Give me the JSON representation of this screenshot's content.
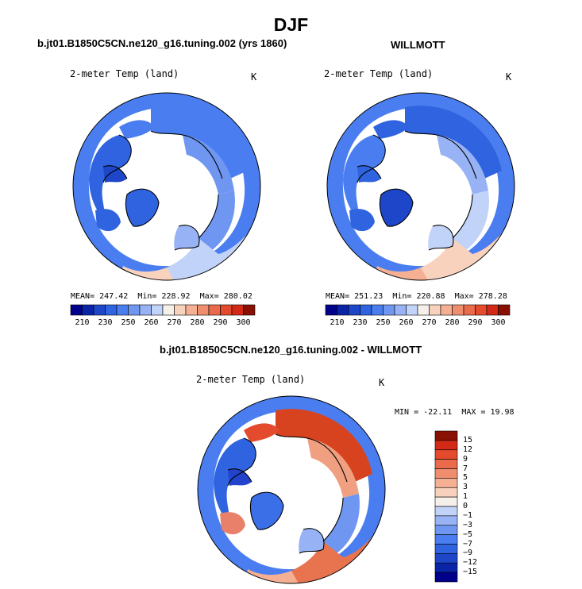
{
  "title": "DJF",
  "colors": {
    "abs_scale": [
      "#00008b",
      "#0a24a8",
      "#1e46c8",
      "#2f63e0",
      "#4a7ef0",
      "#6f97f2",
      "#98b3f5",
      "#c1d3f8",
      "#f6f0ea",
      "#f8d2bd",
      "#f5b094",
      "#ef8e6e",
      "#ea6a4b",
      "#e44a2c",
      "#d22a16",
      "#8b1004"
    ],
    "diff_scale": [
      "#00008b",
      "#0a24a8",
      "#1e46c8",
      "#2f63e0",
      "#4a7ef0",
      "#6f97f2",
      "#98b3f5",
      "#c1d3f8",
      "#f6f0ea",
      "#f8d2bd",
      "#f5b094",
      "#ef8e6e",
      "#ea6a4b",
      "#e44a2c",
      "#d22a16",
      "#8b1004"
    ]
  },
  "chart_data": [
    {
      "type": "heatmap",
      "projection": "north polar stereographic",
      "title": "b.jt01.B1850C5CN.ne120_g16.tuning.002 (yrs 1860)",
      "variable": "2-meter Temp (land)",
      "units": "K",
      "stats": {
        "mean_label": "MEAN=",
        "mean": "247.42",
        "min_label": "Min=",
        "min": "228.92",
        "max_label": "Max=",
        "max": "280.02"
      },
      "colorbar": {
        "orientation": "horizontal",
        "ticks": [
          "210",
          "230",
          "250",
          "260",
          "270",
          "280",
          "290",
          "300"
        ]
      }
    },
    {
      "type": "heatmap",
      "projection": "north polar stereographic",
      "title": "WILLMOTT",
      "variable": "2-meter Temp (land)",
      "units": "K",
      "stats": {
        "mean_label": "MEAN=",
        "mean": "251.23",
        "min_label": "Min=",
        "min": "220.88",
        "max_label": "Max=",
        "max": "278.28"
      },
      "colorbar": {
        "orientation": "horizontal",
        "ticks": [
          "210",
          "230",
          "250",
          "260",
          "270",
          "280",
          "290",
          "300"
        ]
      }
    },
    {
      "type": "heatmap",
      "projection": "north polar stereographic",
      "title": "b.jt01.B1850C5CN.ne120_g16.tuning.002 - WILLMOTT",
      "variable": "2-meter Temp (land)",
      "units": "K",
      "stats": {
        "min_label": "MIN =",
        "min": "-22.11",
        "max_label": "MAX =",
        "max": "19.98"
      },
      "colorbar": {
        "orientation": "vertical",
        "ticks": [
          "15",
          "12",
          "9",
          "7",
          "5",
          "3",
          "1",
          "0",
          "−1",
          "−3",
          "−5",
          "−7",
          "−9",
          "−12",
          "−15"
        ]
      }
    }
  ]
}
